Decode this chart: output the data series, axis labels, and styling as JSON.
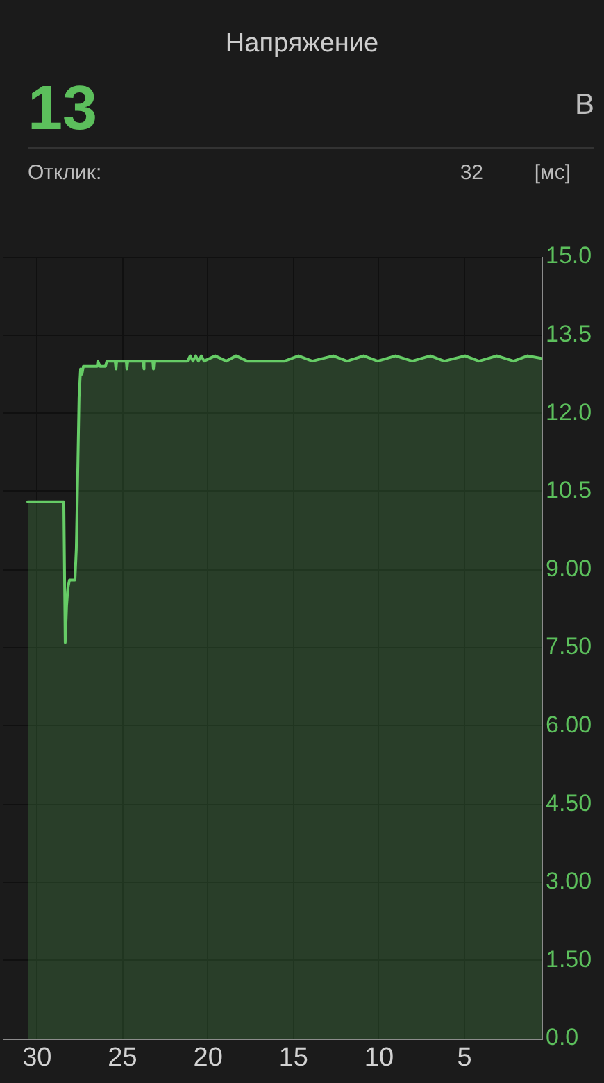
{
  "chart_data": {
    "type": "area",
    "title": "Напряжение",
    "annotations": [
      "13",
      "В",
      "Отклик:",
      "32",
      "[мс]"
    ],
    "x": [
      30.54,
      28.43,
      28.35,
      28.27,
      28.19,
      28.1,
      27.78,
      27.7,
      27.62,
      27.54,
      27.45,
      27.37,
      27.29,
      26.48,
      26.44,
      26.32,
      26.0,
      25.91,
      25.43,
      25.38,
      25.34,
      24.78,
      24.74,
      24.69,
      23.8,
      23.76,
      23.72,
      23.23,
      23.19,
      23.15,
      21.2,
      21.04,
      20.88,
      20.72,
      20.56,
      20.39,
      20.23,
      19.58,
      18.93,
      18.36,
      17.71,
      16.74,
      15.52,
      14.71,
      13.9,
      12.68,
      11.87,
      10.9,
      10.08,
      9.03,
      8.06,
      7.0,
      6.19,
      4.97,
      4.16,
      3.11,
      2.13,
      1.32,
      0.5
    ],
    "series": [
      {
        "color": "#66cc66",
        "values": [
          10.3,
          10.3,
          7.6,
          8.3,
          8.65,
          8.8,
          8.8,
          9.4,
          10.8,
          12.3,
          12.85,
          12.75,
          12.9,
          12.9,
          13.0,
          12.9,
          12.9,
          13.0,
          13.0,
          12.85,
          13.0,
          13.0,
          12.85,
          13.0,
          13.0,
          12.85,
          13.0,
          13.0,
          12.85,
          13.0,
          13.0,
          13.1,
          13.0,
          13.1,
          13.0,
          13.1,
          13.0,
          13.1,
          13.0,
          13.1,
          13.0,
          13.0,
          13.0,
          13.1,
          13.0,
          13.1,
          13.0,
          13.1,
          13.0,
          13.1,
          13.0,
          13.1,
          13.0,
          13.1,
          13.0,
          13.1,
          13.0,
          13.1,
          13.05
        ]
      }
    ],
    "xlim": [
      32,
      0.5
    ],
    "xticks": [
      30,
      25,
      20,
      15,
      10,
      5
    ],
    "ylim": [
      0,
      15
    ],
    "yticks": [
      {
        "value": 0,
        "label": "0.0"
      },
      {
        "value": 1.5,
        "label": "1.50"
      },
      {
        "value": 3,
        "label": "3.00"
      },
      {
        "value": 4.5,
        "label": "4.50"
      },
      {
        "value": 6,
        "label": "6.00"
      },
      {
        "value": 7.5,
        "label": "7.50"
      },
      {
        "value": 9,
        "label": "9.00"
      },
      10.5,
      {
        "value": 12,
        "label": "12.0"
      },
      13.5,
      {
        "value": 15,
        "label": "15.0"
      }
    ],
    "grid": true,
    "legend": false,
    "marker": "none",
    "line_style": "solid"
  }
}
